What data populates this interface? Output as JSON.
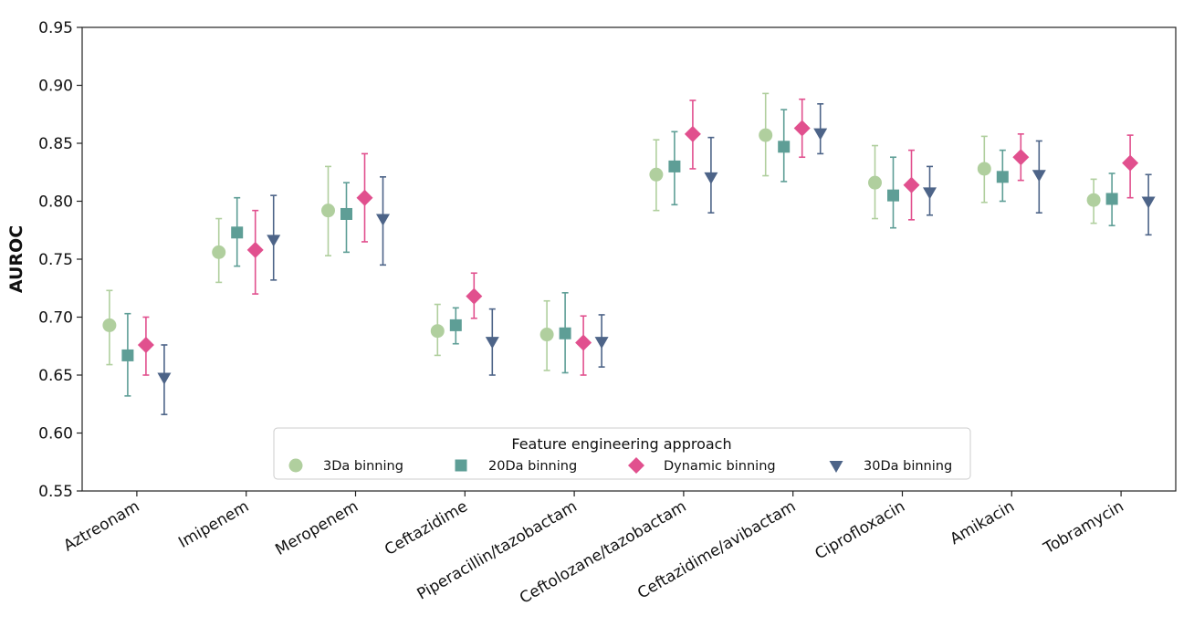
{
  "chart_data": {
    "type": "scatter",
    "ylabel": "AUROC",
    "xlabel": "",
    "ylim": [
      0.55,
      0.95
    ],
    "yticks": [
      0.55,
      0.6,
      0.65,
      0.7,
      0.75,
      0.8,
      0.85,
      0.9,
      0.95
    ],
    "grid": false,
    "categories": [
      "Aztreonam",
      "Imipenem",
      "Meropenem",
      "Ceftazidime",
      "Piperacillin/tazobactam",
      "Ceftolozane/tazobactam",
      "Ceftazidime/avibactam",
      "Ciprofloxacin",
      "Amikacin",
      "Tobramycin"
    ],
    "legend": {
      "title": "Feature engineering approach",
      "placement": "bottom-center"
    },
    "series": [
      {
        "name": "3Da binning",
        "marker": "circle",
        "color": "#b0cf9e",
        "values": [
          0.693,
          0.756,
          0.792,
          0.688,
          0.685,
          0.823,
          0.857,
          0.816,
          0.828,
          0.801
        ],
        "lower": [
          0.659,
          0.73,
          0.753,
          0.667,
          0.654,
          0.792,
          0.822,
          0.785,
          0.799,
          0.781
        ],
        "upper": [
          0.723,
          0.785,
          0.83,
          0.711,
          0.714,
          0.853,
          0.893,
          0.848,
          0.856,
          0.819
        ]
      },
      {
        "name": "20Da binning",
        "marker": "square",
        "color": "#5e9e96",
        "values": [
          0.667,
          0.773,
          0.789,
          0.693,
          0.686,
          0.83,
          0.847,
          0.805,
          0.821,
          0.802
        ],
        "lower": [
          0.632,
          0.744,
          0.756,
          0.677,
          0.652,
          0.797,
          0.817,
          0.777,
          0.8,
          0.779
        ],
        "upper": [
          0.703,
          0.803,
          0.816,
          0.708,
          0.721,
          0.86,
          0.879,
          0.838,
          0.844,
          0.824
        ]
      },
      {
        "name": "Dynamic binning",
        "marker": "diamond",
        "color": "#e1508e",
        "values": [
          0.676,
          0.758,
          0.803,
          0.718,
          0.678,
          0.858,
          0.863,
          0.814,
          0.838,
          0.833
        ],
        "lower": [
          0.65,
          0.72,
          0.765,
          0.699,
          0.65,
          0.828,
          0.838,
          0.784,
          0.818,
          0.803
        ],
        "upper": [
          0.7,
          0.792,
          0.841,
          0.738,
          0.701,
          0.887,
          0.888,
          0.844,
          0.858,
          0.857
        ]
      },
      {
        "name": "30Da binning",
        "marker": "triangle-down",
        "color": "#4d6488",
        "values": [
          0.648,
          0.767,
          0.785,
          0.679,
          0.679,
          0.821,
          0.859,
          0.808,
          0.823,
          0.8
        ],
        "lower": [
          0.616,
          0.732,
          0.745,
          0.65,
          0.657,
          0.79,
          0.841,
          0.788,
          0.79,
          0.771
        ],
        "upper": [
          0.676,
          0.805,
          0.821,
          0.707,
          0.702,
          0.855,
          0.884,
          0.83,
          0.852,
          0.823
        ]
      }
    ]
  }
}
